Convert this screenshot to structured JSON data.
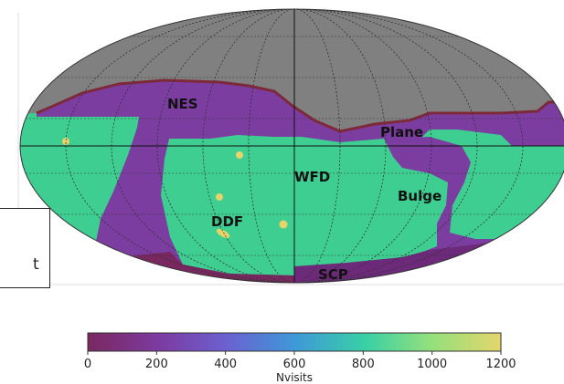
{
  "map": {
    "projection": "mollweide",
    "grid": true,
    "colors": {
      "masked": "#808080",
      "low": "#78285f",
      "purple": "#7b3d9f",
      "wfd": "#3fce91",
      "dot": "#e6d46a",
      "border": "#7c2a3a",
      "teal": "#2c8f92"
    },
    "regions": [
      {
        "id": "nes",
        "label": "NES"
      },
      {
        "id": "plane",
        "label": "Plane"
      },
      {
        "id": "wfd",
        "label": "WFD"
      },
      {
        "id": "bulge",
        "label": "Bulge"
      },
      {
        "id": "ddf",
        "label": "DDF"
      },
      {
        "id": "scp",
        "label": "SCP"
      }
    ]
  },
  "cut_box": {
    "visible_text": "t"
  },
  "colorbar": {
    "label": "Nvisits",
    "min": 0,
    "max": 1200,
    "ticks": [
      "0",
      "200",
      "400",
      "600",
      "800",
      "1000",
      "1200"
    ],
    "colormap": "viridis-like (plasma to yellow)"
  }
}
